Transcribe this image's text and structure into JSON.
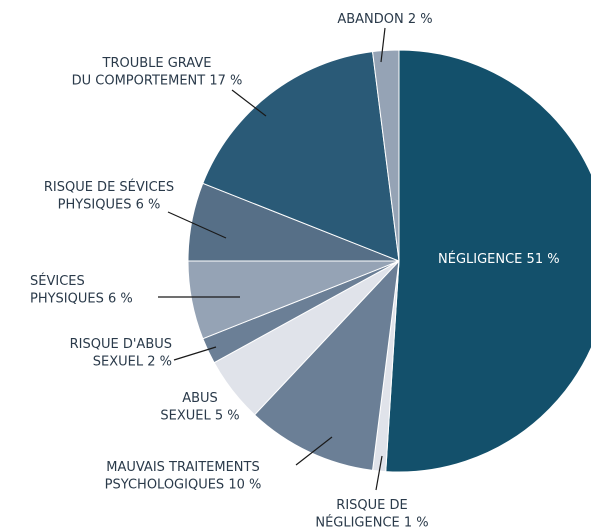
{
  "chart_data": {
    "type": "pie",
    "categories": [
      [
        "NÉGLIGENCE"
      ],
      [
        "RISQUE DE",
        "NÉGLIGENCE"
      ],
      [
        "MAUVAIS TRAITEMENTS",
        "PSYCHOLOGIQUES"
      ],
      [
        "ABUS",
        "SEXUEL"
      ],
      [
        "RISQUE D'ABUS",
        "SEXUEL"
      ],
      [
        "SÉVICES",
        "PHYSIQUES"
      ],
      [
        "RISQUE DE SÉVICES",
        "PHYSIQUES"
      ],
      [
        "TROUBLE GRAVE",
        "DU COMPORTEMENT"
      ],
      [
        "ABANDON"
      ]
    ],
    "values": [
      51,
      1,
      10,
      5,
      2,
      6,
      6,
      17,
      2
    ],
    "value_labels": [
      "51 %",
      "1 %",
      "10 %",
      "5 %",
      "2 %",
      "6 %",
      "6 %",
      "17 %",
      "2 %"
    ],
    "colors": [
      "#13506b",
      "#e0e3ea",
      "#6b7f96",
      "#e0e3ea",
      "#6b7f96",
      "#95a3b5",
      "#566f87",
      "#2a5a77",
      "#95a3b5"
    ]
  }
}
